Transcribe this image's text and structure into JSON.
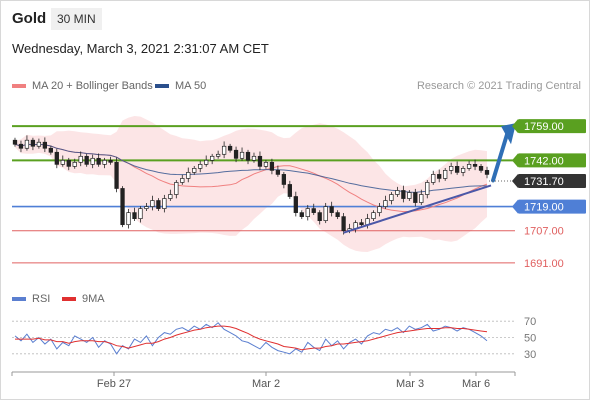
{
  "header": {
    "instrument": "Gold",
    "timeframe": "30 MIN",
    "datetime": "Wednesday, March 3, 2021 2:31:07 AM CET"
  },
  "legend": {
    "ma20_label": "MA 20 + Bollinger Bands",
    "ma50_label": "MA 50",
    "rsi_label": "RSI",
    "rsi_ma_label": "9MA",
    "credit": "Research © 2021 Trading Central"
  },
  "colors": {
    "ma20": "#f08080",
    "bands_fill": "#fbe0e2",
    "ma50": "#2b4f8c",
    "resistance": "#5aa020",
    "support": "#4f7fd6",
    "support_low": "#e06060",
    "arrow": "#2f6fb6",
    "trendline": "#4b58a8",
    "current": "#333333",
    "rsi": "#5b7fd0",
    "rsi_ma": "#e03030"
  },
  "chart_data": {
    "type": "candlestick",
    "x_tick_labels": [
      "Feb 27",
      "Mar 2",
      "Mar 3",
      "Mar 6"
    ],
    "ylim": [
      1680,
      1772
    ],
    "price": {
      "start": 1752,
      "closes": [
        1750,
        1748,
        1752,
        1749,
        1751,
        1748,
        1746,
        1740,
        1742,
        1739,
        1741,
        1744,
        1740,
        1743,
        1740,
        1742,
        1741,
        1728,
        1710,
        1716,
        1713,
        1718,
        1719,
        1722,
        1718,
        1723,
        1725,
        1731,
        1733,
        1736,
        1738,
        1740,
        1742,
        1744,
        1745,
        1749,
        1747,
        1743,
        1746,
        1742,
        1744,
        1739,
        1741,
        1737,
        1735,
        1730,
        1724,
        1716,
        1714,
        1718,
        1716,
        1712,
        1719,
        1716,
        1714,
        1707,
        1708,
        1711,
        1710,
        1713,
        1716,
        1719,
        1722,
        1725,
        1727,
        1723,
        1726,
        1721,
        1725,
        1731,
        1735,
        1733,
        1737,
        1739,
        1736,
        1738,
        1740,
        1739,
        1737,
        1735
      ],
      "current": 1731.7
    },
    "levels": {
      "resistance": [
        1759.0,
        1742.0
      ],
      "pivot": 1719.0,
      "support": [
        1707.0,
        1691.0
      ]
    },
    "rsi": {
      "ylim": [
        20,
        80
      ],
      "ticks": [
        70,
        50,
        30
      ],
      "values": [
        52,
        46,
        54,
        44,
        50,
        42,
        48,
        36,
        44,
        40,
        52,
        48,
        44,
        50,
        38,
        46,
        42,
        30,
        40,
        36,
        48,
        44,
        52,
        40,
        50,
        56,
        54,
        60,
        62,
        58,
        64,
        60,
        66,
        62,
        68,
        60,
        56,
        52,
        46,
        44,
        40,
        36,
        44,
        38,
        34,
        32,
        30,
        36,
        32,
        44,
        38,
        34,
        48,
        40,
        46,
        36,
        44,
        48,
        42,
        52,
        56,
        54,
        60,
        58,
        62,
        56,
        64,
        60,
        62,
        66,
        58,
        60,
        64,
        62,
        58,
        62,
        60,
        56,
        52,
        46
      ],
      "ma": [
        48,
        48,
        48,
        48,
        49,
        47,
        47,
        45,
        45,
        43,
        45,
        46,
        46,
        46,
        45,
        45,
        43,
        40,
        39,
        37,
        39,
        41,
        43,
        43,
        45,
        48,
        50,
        53,
        55,
        57,
        59,
        60,
        62,
        63,
        64,
        64,
        63,
        61,
        58,
        55,
        51,
        48,
        46,
        44,
        42,
        39,
        38,
        37,
        35,
        36,
        37,
        37,
        39,
        40,
        42,
        42,
        43,
        44,
        45,
        46,
        48,
        50,
        52,
        54,
        56,
        57,
        58,
        59,
        60,
        61,
        61,
        61,
        62,
        62,
        61,
        61,
        60,
        59,
        58,
        57
      ]
    }
  }
}
